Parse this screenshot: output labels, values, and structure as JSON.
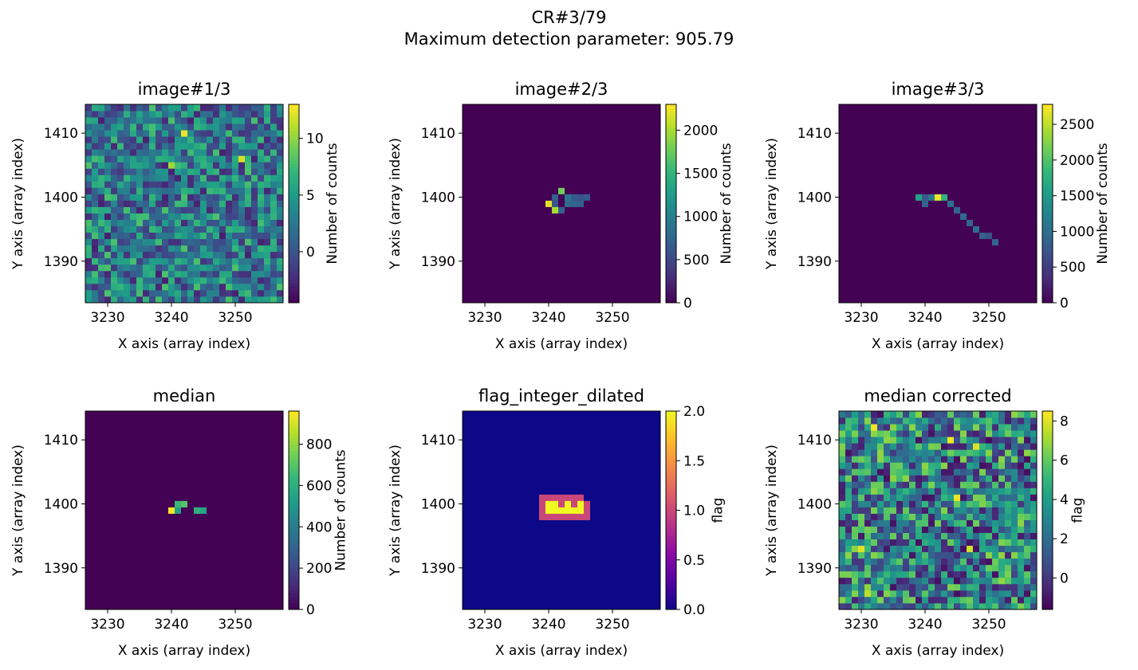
{
  "figure": {
    "title_line1": "CR#3/79",
    "title_line2": "Maximum detection parameter: 905.79"
  },
  "chart_data": [
    {
      "type": "heatmap",
      "title": "image#1/3",
      "xlabel": "X axis (array index)",
      "ylabel": "Y axis (array index)",
      "xlim": [
        3226.5,
        3257.5
      ],
      "ylim": [
        1383.5,
        1414.5
      ],
      "xticks": [
        "3230",
        "3240",
        "3250"
      ],
      "yticks": [
        "1390",
        "1400",
        "1410"
      ],
      "colormap": "viridis",
      "colorbar": {
        "label": "Number of counts",
        "range": [
          -4.5,
          13
        ],
        "ticks": [
          "0",
          "5",
          "10"
        ],
        "tick_values": [
          0,
          5,
          10
        ]
      },
      "content": {
        "kind": "noise",
        "low": -3,
        "high": 8,
        "hot": [
          [
            3242,
            1410,
            12.5
          ],
          [
            3251,
            1406,
            12.0
          ],
          [
            3240,
            1405,
            10.5
          ]
        ]
      }
    },
    {
      "type": "heatmap",
      "title": "image#2/3",
      "xlabel": "X axis (array index)",
      "ylabel": "Y axis (array index)",
      "xlim": [
        3226.5,
        3257.5
      ],
      "ylim": [
        1383.5,
        1414.5
      ],
      "xticks": [
        "3230",
        "3240",
        "3250"
      ],
      "yticks": [
        "1390",
        "1400",
        "1410"
      ],
      "colormap": "viridis",
      "colorbar": {
        "label": "Number of counts",
        "range": [
          0,
          2300
        ],
        "ticks": [
          "0",
          "500",
          "1000",
          "1500",
          "2000"
        ],
        "tick_values": [
          0,
          500,
          1000,
          1500,
          2000
        ]
      },
      "content": {
        "kind": "background",
        "level": 5,
        "pixels": [
          [
            3242,
            1401,
            1800
          ],
          [
            3241,
            1400,
            700
          ],
          [
            3243,
            1400,
            900
          ],
          [
            3244,
            1400,
            650
          ],
          [
            3245,
            1400,
            600
          ],
          [
            3246,
            1400,
            650
          ],
          [
            3240,
            1399,
            2200
          ],
          [
            3241,
            1399,
            600
          ],
          [
            3243,
            1399,
            800
          ],
          [
            3244,
            1399,
            750
          ],
          [
            3245,
            1399,
            700
          ],
          [
            3241,
            1398,
            2000
          ],
          [
            3242,
            1398,
            700
          ]
        ]
      }
    },
    {
      "type": "heatmap",
      "title": "image#3/3",
      "xlabel": "X axis (array index)",
      "ylabel": "Y axis (array index)",
      "xlim": [
        3226.5,
        3257.5
      ],
      "ylim": [
        1383.5,
        1414.5
      ],
      "xticks": [
        "3230",
        "3240",
        "3250"
      ],
      "yticks": [
        "1390",
        "1400",
        "1410"
      ],
      "colormap": "viridis",
      "colorbar": {
        "label": "Number of counts",
        "range": [
          0,
          2780
        ],
        "ticks": [
          "0",
          "500",
          "1000",
          "1500",
          "2000",
          "2500"
        ],
        "tick_values": [
          0,
          500,
          1000,
          1500,
          2000,
          2500
        ]
      },
      "content": {
        "kind": "background",
        "level": 5,
        "pixels": [
          [
            3239,
            1400,
            1600
          ],
          [
            3240,
            1400,
            800
          ],
          [
            3241,
            1400,
            1100
          ],
          [
            3242,
            1400,
            2700
          ],
          [
            3243,
            1400,
            1800
          ],
          [
            3240,
            1399,
            900
          ],
          [
            3244,
            1399,
            1000
          ],
          [
            3245,
            1398,
            900
          ],
          [
            3246,
            1397,
            950
          ],
          [
            3247,
            1396,
            900
          ],
          [
            3248,
            1395,
            1000
          ],
          [
            3249,
            1394,
            850
          ],
          [
            3250,
            1394,
            700
          ],
          [
            3251,
            1393,
            900
          ]
        ]
      }
    },
    {
      "type": "heatmap",
      "title": "median",
      "xlabel": "X axis (array index)",
      "ylabel": "Y axis (array index)",
      "xlim": [
        3226.5,
        3257.5
      ],
      "ylim": [
        1383.5,
        1414.5
      ],
      "xticks": [
        "3230",
        "3240",
        "3250"
      ],
      "yticks": [
        "1390",
        "1400",
        "1410"
      ],
      "colormap": "viridis",
      "colorbar": {
        "label": "Number of counts",
        "range": [
          0,
          960
        ],
        "ticks": [
          "0",
          "200",
          "400",
          "600",
          "800"
        ],
        "tick_values": [
          0,
          200,
          400,
          600,
          800
        ]
      },
      "content": {
        "kind": "background",
        "level": 3,
        "pixels": [
          [
            3241,
            1400,
            650
          ],
          [
            3242,
            1400,
            700
          ],
          [
            3240,
            1399,
            950
          ],
          [
            3241,
            1399,
            550
          ],
          [
            3244,
            1399,
            620
          ],
          [
            3245,
            1399,
            560
          ]
        ]
      }
    },
    {
      "type": "heatmap",
      "title": "flag_integer_dilated",
      "xlabel": "X axis (array index)",
      "ylabel": "Y axis (array index)",
      "xlim": [
        3226.5,
        3257.5
      ],
      "ylim": [
        1383.5,
        1414.5
      ],
      "xticks": [
        "3230",
        "3240",
        "3250"
      ],
      "yticks": [
        "1390",
        "1400",
        "1410"
      ],
      "colormap": "plasma",
      "colorbar": {
        "label": "flag",
        "range": [
          0,
          2
        ],
        "ticks": [
          "0.0",
          "0.5",
          "1.0",
          "1.5",
          "2.0"
        ],
        "tick_values": [
          0,
          0.5,
          1.0,
          1.5,
          2.0
        ]
      },
      "content": {
        "kind": "flags",
        "level": 0,
        "ones": [
          [
            3239,
            3245,
            1401
          ],
          [
            3239,
            3246,
            1398
          ],
          [
            3239,
            3246,
            1399
          ],
          [
            3239,
            3246,
            1400
          ]
        ],
        "twos": [
          [
            3240,
            1400
          ],
          [
            3241,
            1400
          ],
          [
            3240,
            1399
          ],
          [
            3241,
            1399
          ],
          [
            3242,
            1399
          ],
          [
            3243,
            1399
          ],
          [
            3244,
            1399
          ],
          [
            3245,
            1399
          ],
          [
            3243,
            1400
          ],
          [
            3245,
            1400
          ]
        ]
      }
    },
    {
      "type": "heatmap",
      "title": "median corrected",
      "xlabel": "X axis (array index)",
      "ylabel": "Y axis (array index)",
      "xlim": [
        3226.5,
        3257.5
      ],
      "ylim": [
        1383.5,
        1414.5
      ],
      "xticks": [
        "3230",
        "3240",
        "3250"
      ],
      "yticks": [
        "1390",
        "1400",
        "1410"
      ],
      "colormap": "viridis",
      "colorbar": {
        "label": "flag",
        "range": [
          -1.6,
          8.5
        ],
        "ticks": [
          "0",
          "2",
          "4",
          "6",
          "8"
        ],
        "tick_values": [
          0,
          2,
          4,
          6,
          8
        ]
      },
      "content": {
        "kind": "noise",
        "low": -1.2,
        "high": 6.8,
        "hot": [
          [
            3232,
            1412,
            8.3
          ],
          [
            3244,
            1410,
            8.3
          ],
          [
            3248,
            1409,
            8.0
          ],
          [
            3245,
            1401,
            8.2
          ],
          [
            3230,
            1393,
            8.0
          ],
          [
            3247,
            1393,
            7.8
          ],
          [
            3231,
            1386,
            7.5
          ]
        ]
      }
    }
  ]
}
